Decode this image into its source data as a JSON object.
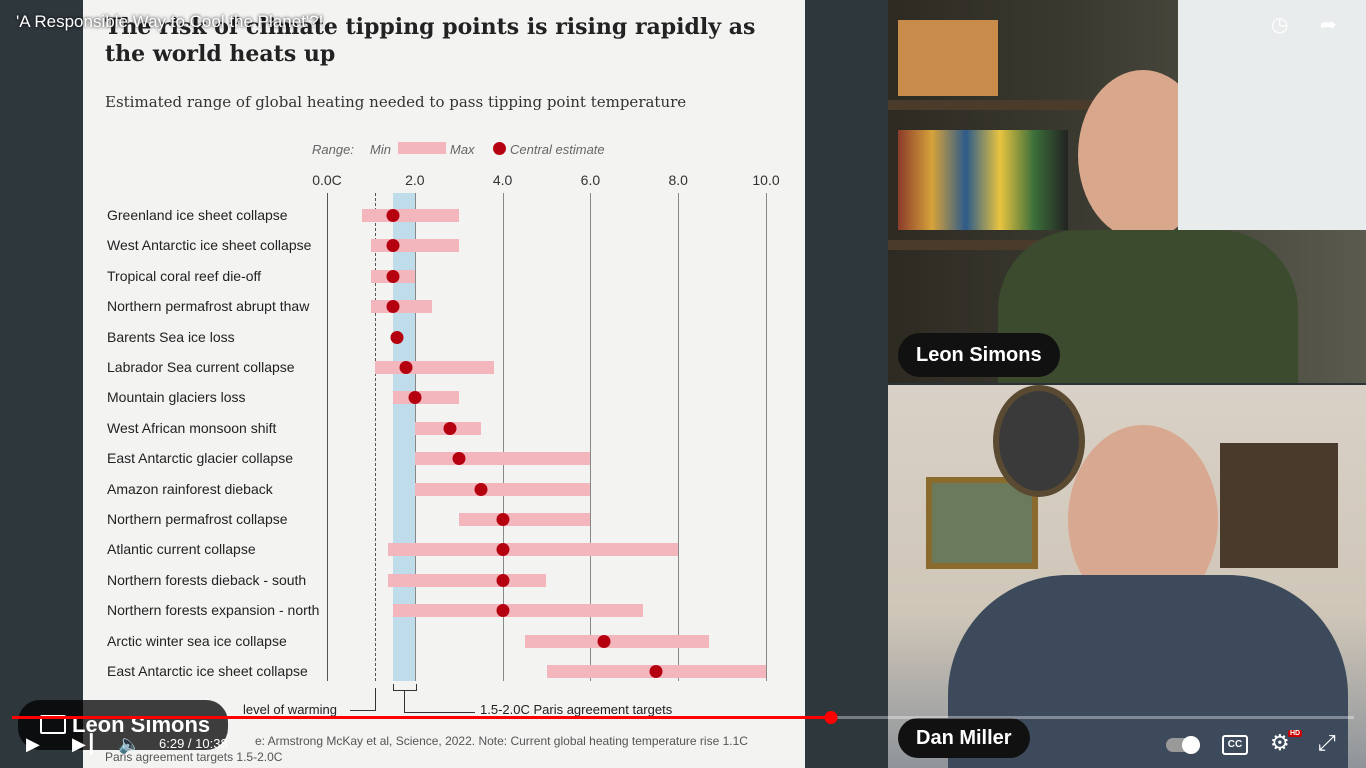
{
  "video": {
    "title": "'A Responsible Way to Cool the Planet'?!",
    "time_current": "6:29",
    "time_total": "10:38",
    "time_display": "6:29 / 10:38",
    "progress": 0.61
  },
  "slide": {
    "title": "The risk of climate tipping points is rising rapidly as the world heats up",
    "subtitle": "Estimated range of global heating needed to pass tipping point temperature",
    "legend": {
      "range": "Range:",
      "min": "Min",
      "max": "Max",
      "central": "Central estimate"
    },
    "ticks": [
      "0.0C",
      "2.0",
      "4.0",
      "6.0",
      "8.0",
      "10.0"
    ],
    "annotation_current": "level of warming",
    "annotation_paris": "1.5-2.0C Paris agreement targets",
    "source_line1": "e: Armstrong McKay et al, Science, 2022. Note: Current global heating temperature rise 1.1C",
    "source_line2": "Paris agreement targets 1.5-2.0C"
  },
  "chart_data": {
    "type": "bar",
    "title": "The risk of climate tipping points is rising rapidly as the world heats up",
    "subtitle": "Estimated range of global heating needed to pass tipping point temperature",
    "xlim": [
      0,
      10
    ],
    "categories": [
      "Greenland ice sheet collapse",
      "West Antarctic ice sheet collapse",
      "Tropical coral reef die-off",
      "Northern permafrost abrupt thaw",
      "Barents Sea ice loss",
      "Labrador Sea current collapse",
      "Mountain glaciers loss",
      "West African monsoon shift",
      "East Antarctic glacier collapse",
      "Amazon rainforest dieback",
      "Northern permafrost collapse",
      "Atlantic current collapse",
      "Northern forests dieback - south",
      "Northern forests expansion - north",
      "Arctic winter sea ice collapse",
      "East Antarctic ice sheet collapse"
    ],
    "series": [
      {
        "name": "Min",
        "values": [
          0.8,
          1.0,
          1.0,
          1.0,
          null,
          1.1,
          1.5,
          2.0,
          2.0,
          2.0,
          3.0,
          1.4,
          1.4,
          1.5,
          4.5,
          5.0
        ]
      },
      {
        "name": "Max",
        "values": [
          3.0,
          3.0,
          2.0,
          2.4,
          null,
          3.8,
          3.0,
          3.5,
          6.0,
          6.0,
          6.0,
          8.0,
          5.0,
          7.2,
          8.7,
          10.0
        ]
      },
      {
        "name": "Central estimate",
        "values": [
          1.5,
          1.5,
          1.5,
          1.5,
          1.6,
          1.8,
          2.0,
          2.8,
          3.0,
          3.5,
          4.0,
          4.0,
          4.0,
          4.0,
          6.3,
          7.5
        ]
      }
    ],
    "reference_lines": {
      "current_warming": 1.1,
      "paris_band": [
        1.5,
        2.0
      ]
    },
    "grid": true
  },
  "speakers": {
    "top": "Leon Simons",
    "bottom": "Dan Miller",
    "overlay": "Leon Simons"
  },
  "controls": {
    "play": "play-icon",
    "next": "next-icon",
    "volume": "volume-icon",
    "autoplay": "autoplay-toggle",
    "cc": "CC",
    "settings_badge": "HD",
    "fullscreen_exit": "exit-fullscreen-icon"
  }
}
